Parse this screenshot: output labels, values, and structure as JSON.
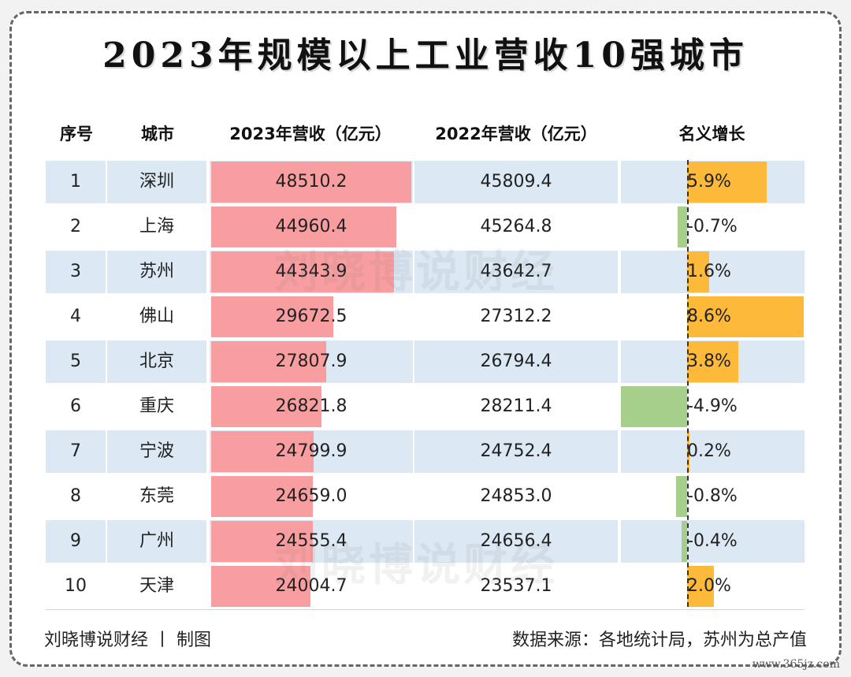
{
  "title": "2023年规模以上工业营收10强城市",
  "headers": {
    "rank": "序号",
    "city": "城市",
    "rev2023": "2023年营收（亿元）",
    "rev2022": "2022年营收（亿元）",
    "growth": "名义增长"
  },
  "colors": {
    "bar_2023": "#f99ea0",
    "growth_positive": "#fcb93a",
    "growth_negative": "#a7cf8c",
    "row_shade": "#dce8f3"
  },
  "chart_data": {
    "type": "table",
    "columns": [
      "序号",
      "城市",
      "2023年营收（亿元）",
      "2022年营收（亿元）",
      "名义增长"
    ],
    "rows": [
      {
        "rank": "1",
        "city": "深圳",
        "rev2023": 48510.2,
        "rev2023_text": "48510.2",
        "rev2022_text": "45809.4",
        "growth": 5.9,
        "growth_text": "5.9%"
      },
      {
        "rank": "2",
        "city": "上海",
        "rev2023": 44960.4,
        "rev2023_text": "44960.4",
        "rev2022_text": "45264.8",
        "growth": -0.7,
        "growth_text": "-0.7%"
      },
      {
        "rank": "3",
        "city": "苏州",
        "rev2023": 44343.9,
        "rev2023_text": "44343.9",
        "rev2022_text": "43642.7",
        "growth": 1.6,
        "growth_text": "1.6%"
      },
      {
        "rank": "4",
        "city": "佛山",
        "rev2023": 29672.5,
        "rev2023_text": "29672.5",
        "rev2022_text": "27312.2",
        "growth": 8.6,
        "growth_text": "8.6%"
      },
      {
        "rank": "5",
        "city": "北京",
        "rev2023": 27807.9,
        "rev2023_text": "27807.9",
        "rev2022_text": "26794.4",
        "growth": 3.8,
        "growth_text": "3.8%"
      },
      {
        "rank": "6",
        "city": "重庆",
        "rev2023": 26821.8,
        "rev2023_text": "26821.8",
        "rev2022_text": "28211.4",
        "growth": -4.9,
        "growth_text": "-4.9%"
      },
      {
        "rank": "7",
        "city": "宁波",
        "rev2023": 24799.9,
        "rev2023_text": "24799.9",
        "rev2022_text": "24752.4",
        "growth": 0.2,
        "growth_text": "0.2%"
      },
      {
        "rank": "8",
        "city": "东莞",
        "rev2023": 24659.0,
        "rev2023_text": "24659.0",
        "rev2022_text": "24853.0",
        "growth": -0.8,
        "growth_text": "-0.8%"
      },
      {
        "rank": "9",
        "city": "广州",
        "rev2023": 24555.4,
        "rev2023_text": "24555.4",
        "rev2022_text": "24656.4",
        "growth": -0.4,
        "growth_text": "-0.4%"
      },
      {
        "rank": "10",
        "city": "天津",
        "rev2023": 24004.7,
        "rev2023_text": "24004.7",
        "rev2022_text": "23537.1",
        "growth": 2.0,
        "growth_text": "2.0%"
      }
    ]
  },
  "watermark": "刘晓博说财经",
  "footer": {
    "left": "刘晓博说财经 丨 制图",
    "right": "数据来源：各地统计局，苏州为总产值"
  },
  "site_mark": "www.365jz.com"
}
